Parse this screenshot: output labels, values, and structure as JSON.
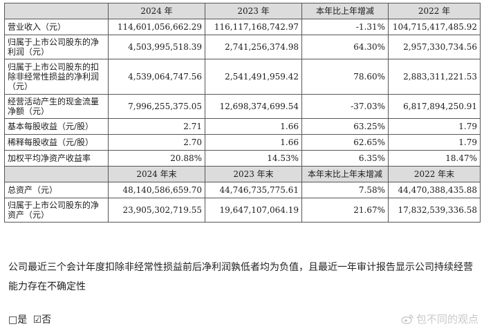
{
  "table": {
    "header1": [
      "",
      "2024 年",
      "2023 年",
      "本年比上年增减",
      "2022 年"
    ],
    "rows1": [
      {
        "label": "营业收入（元）",
        "v": [
          "114,601,056,662.29",
          "116,117,168,742.97",
          "-1.31%",
          "104,715,417,485.92"
        ]
      },
      {
        "label": "归属于上市公司股东的净利润（元）",
        "v": [
          "4,503,995,518.39",
          "2,741,256,374.98",
          "64.30%",
          "2,957,330,734.56"
        ]
      },
      {
        "label": "归属于上市公司股东的扣除非经常性损益的净利润（元）",
        "v": [
          "4,539,064,747.56",
          "2,541,491,959.42",
          "78.60%",
          "2,883,311,221.53"
        ]
      },
      {
        "label": "经营活动产生的现金流量净额（元）",
        "v": [
          "7,996,255,375.05",
          "12,698,374,699.54",
          "-37.03%",
          "6,817,894,250.91"
        ]
      },
      {
        "label": "基本每股收益（元/股）",
        "v": [
          "2.71",
          "1.66",
          "63.25%",
          "1.79"
        ]
      },
      {
        "label": "稀释每股收益（元/股）",
        "v": [
          "2.70",
          "1.66",
          "62.65%",
          "1.79"
        ]
      },
      {
        "label": "加权平均净资产收益率",
        "v": [
          "20.88%",
          "14.53%",
          "6.35%",
          "18.47%"
        ]
      }
    ],
    "header2": [
      "",
      "2024 年末",
      "2023 年末",
      "本年末比上年末增减",
      "2022 年末"
    ],
    "rows2": [
      {
        "label": "总资产（元）",
        "v": [
          "48,140,586,659.70",
          "44,746,735,775.61",
          "7.58%",
          "44,470,388,435.88"
        ]
      },
      {
        "label": "归属于上市公司股东的净资产（元）",
        "v": [
          "23,905,302,719.55",
          "19,647,107,064.19",
          "21.67%",
          "17,832,539,336.58"
        ]
      }
    ]
  },
  "note": "公司最近三个会计年度扣除非经常性损益前后净利润孰低者均为负值，且最近一年审计报告显示公司持续经营能力存在不确定性",
  "choices": {
    "yes": "□是",
    "no": "☑否"
  },
  "watermark": "包不同的观点",
  "icons": {
    "watermark": "weibo-icon"
  }
}
